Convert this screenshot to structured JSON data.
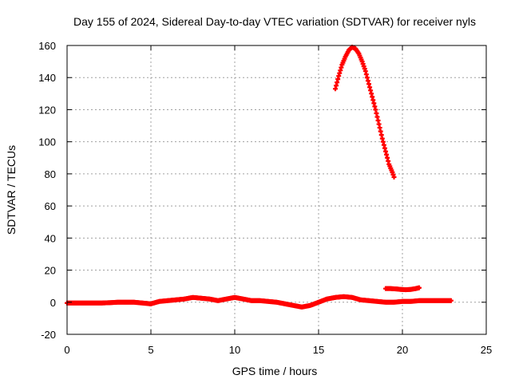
{
  "chart_data": {
    "type": "scatter",
    "title": "Day 155 of 2024, Sidereal Day-to-day VTEC variation (SDTVAR) for receiver nyls",
    "xlabel": "GPS time / hours",
    "ylabel": "SDTVAR / TECUs",
    "xlim": [
      0,
      25
    ],
    "ylim": [
      -20,
      160
    ],
    "xticks": [
      0,
      5,
      10,
      15,
      20,
      25
    ],
    "yticks": [
      -20,
      0,
      20,
      40,
      60,
      80,
      100,
      120,
      140,
      160
    ],
    "grid": true,
    "marker": "plus",
    "color": "#ff0000",
    "series": [
      {
        "x": [
          0.0,
          0.5,
          1.0,
          1.5,
          2.0,
          2.5,
          3.0,
          3.5,
          4.0,
          4.5,
          5.0,
          5.5,
          6.0,
          6.5,
          7.0,
          7.5,
          8.0,
          8.5,
          9.0,
          9.5,
          10.0,
          10.5,
          11.0,
          11.5,
          12.0,
          12.5,
          13.0,
          13.5,
          14.0,
          14.5,
          15.0,
          15.5,
          16.0,
          16.5,
          17.0,
          17.5,
          18.0,
          18.5,
          19.0,
          19.5,
          20.0,
          20.5,
          21.0,
          21.5,
          22.0,
          22.5,
          22.9
        ],
        "y": [
          -0.5,
          -0.5,
          -0.5,
          -0.5,
          -0.5,
          -0.3,
          0.0,
          0.0,
          0.0,
          -0.5,
          -1.0,
          0.5,
          1.0,
          1.5,
          2.0,
          3.0,
          2.5,
          2.0,
          1.0,
          2.0,
          3.0,
          2.0,
          1.0,
          1.0,
          0.5,
          0.0,
          -1.0,
          -2.0,
          -3.0,
          -2.0,
          0.0,
          2.0,
          3.0,
          3.5,
          3.0,
          1.5,
          1.0,
          0.5,
          0.0,
          0.0,
          0.5,
          0.5,
          1.0,
          1.0,
          1.0,
          1.0,
          1.0
        ]
      },
      {
        "x": [
          16.0,
          16.2,
          16.4,
          16.6,
          16.8,
          17.0,
          17.2,
          17.4,
          17.6,
          17.8,
          18.0,
          18.2,
          18.4,
          18.6,
          18.8,
          19.0,
          19.2,
          19.4,
          19.5
        ],
        "y": [
          133,
          141,
          148,
          153,
          157,
          159,
          158,
          155,
          150,
          144,
          136,
          128,
          120,
          111,
          102,
          94,
          86,
          81,
          78
        ]
      },
      {
        "x": [
          19.0,
          19.3,
          19.6,
          19.9,
          20.2,
          20.5,
          20.8,
          21.0
        ],
        "y": [
          8.5,
          8.5,
          8.3,
          8.0,
          7.8,
          8.0,
          8.5,
          9.0
        ]
      }
    ]
  }
}
